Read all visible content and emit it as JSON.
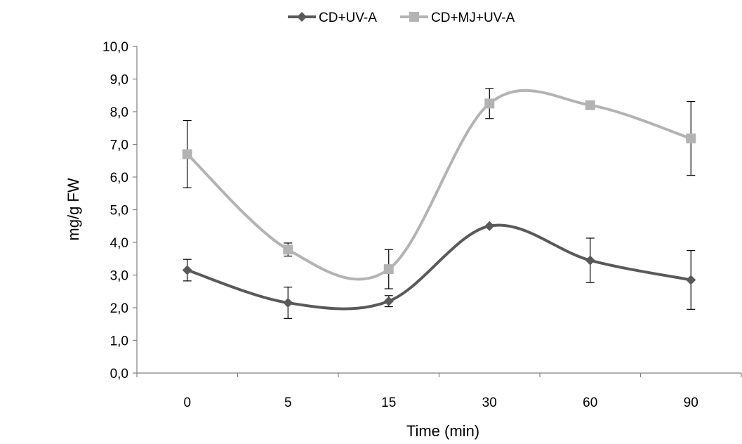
{
  "chart_data": {
    "type": "line",
    "smoothed": true,
    "categories": [
      "0",
      "5",
      "15",
      "30",
      "60",
      "90"
    ],
    "series": [
      {
        "name": "CD+UV-A",
        "values": [
          3.15,
          2.15,
          2.2,
          4.5,
          3.45,
          2.85
        ],
        "error": [
          0.33,
          0.48,
          0.17,
          0.0,
          0.68,
          0.9
        ],
        "color": "#595959",
        "marker": "diamond"
      },
      {
        "name": "CD+MJ+UV-A",
        "values": [
          6.7,
          3.78,
          3.18,
          8.25,
          8.2,
          7.18
        ],
        "error": [
          1.03,
          0.2,
          0.6,
          0.46,
          0.0,
          1.13
        ],
        "color": "#b3b3b3",
        "marker": "square"
      }
    ],
    "xlabel": "Time (min)",
    "ylabel": "mg/g FW",
    "ylim": [
      0,
      10
    ],
    "ytick_step": 1,
    "yticks": [
      "0,0",
      "1,0",
      "2,0",
      "3,0",
      "4,0",
      "5,0",
      "6,0",
      "7,0",
      "8,0",
      "9,0",
      "10,0"
    ],
    "grid": false,
    "legend_position": "top"
  }
}
